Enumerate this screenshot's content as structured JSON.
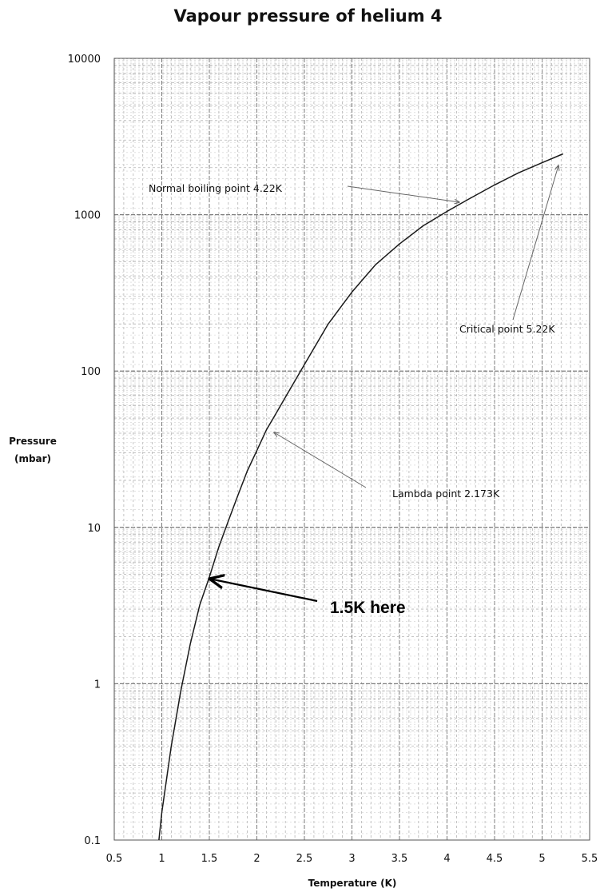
{
  "chart_data": {
    "type": "line",
    "title": "Vapour pressure of helium 4",
    "xlabel": "Temperature (K)",
    "ylabel": [
      "Pressure",
      "(mbar)"
    ],
    "xlim": [
      0.5,
      5.5
    ],
    "ylim": [
      0.1,
      10000
    ],
    "yscale": "log",
    "grid": true,
    "x_ticks": [
      "0.5",
      "1",
      "1.5",
      "2",
      "2.5",
      "3",
      "3.5",
      "4",
      "4.5",
      "5",
      "5.5"
    ],
    "y_ticks": [
      "0.1",
      "1",
      "10",
      "100",
      "1000",
      "10000"
    ],
    "series": [
      {
        "x": [
          0.97,
          1.0,
          1.1,
          1.2,
          1.3,
          1.4,
          1.5,
          1.6,
          1.7,
          1.8,
          1.9,
          2.0,
          2.1,
          2.173,
          2.3,
          2.5,
          2.75,
          3.0,
          3.25,
          3.5,
          3.75,
          4.0,
          4.22,
          4.5,
          4.75,
          5.0,
          5.22
        ],
        "y": [
          0.1,
          0.15,
          0.4,
          0.9,
          1.8,
          3.2,
          4.8,
          7.5,
          11,
          16,
          23,
          31,
          42,
          50,
          68,
          110,
          200,
          320,
          480,
          650,
          850,
          1050,
          1250,
          1550,
          1850,
          2150,
          2450
        ]
      }
    ],
    "annotations": [
      {
        "text": "Normal boiling point 4.22K",
        "x": 4.22,
        "y": 1250
      },
      {
        "text": "Critical point 5.22K",
        "x": 5.22,
        "y": 2300
      },
      {
        "text": "Lambda point 2.173K",
        "x": 2.173,
        "y": 42
      },
      {
        "text": "1.5K here",
        "x": 1.5,
        "y": 4.8
      }
    ]
  }
}
